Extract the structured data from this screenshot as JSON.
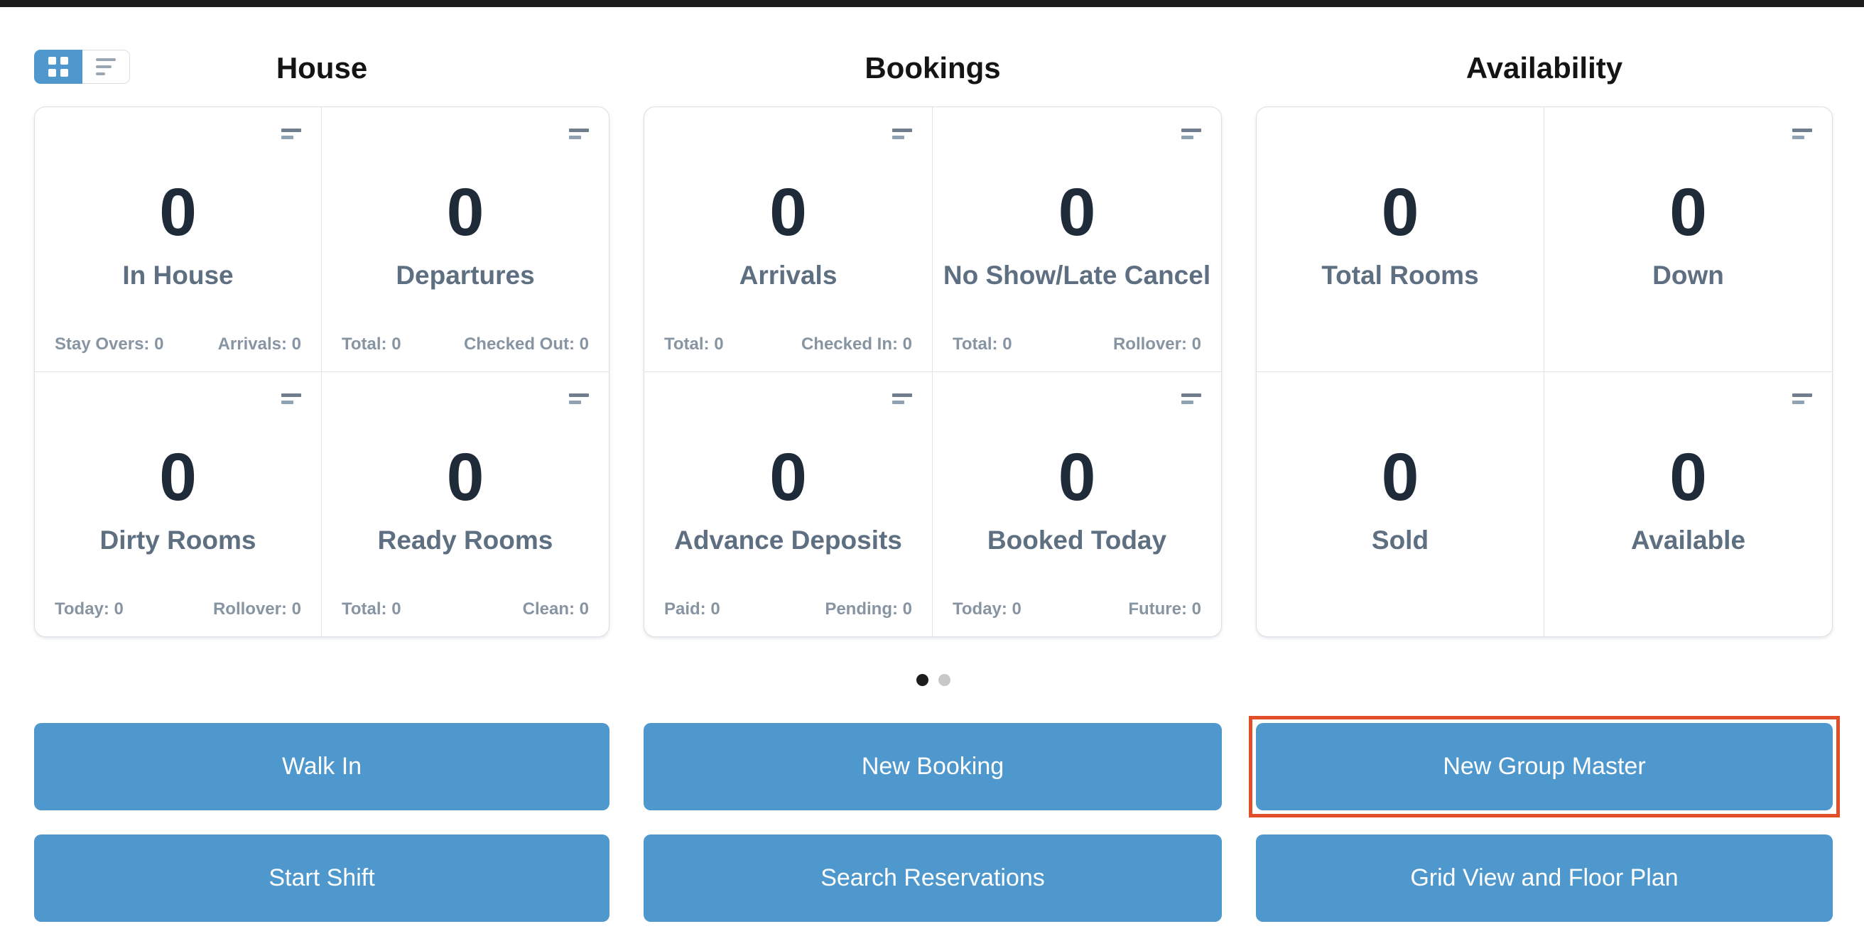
{
  "app": {
    "accent_blue": "#4e98ce",
    "highlight_red": "#e04e2a",
    "topbar_color": "#1c1c1c"
  },
  "view_toggle": {
    "active": "grid",
    "grid_icon": "grid-2x2-icon",
    "list_icon": "list-lines-icon"
  },
  "sections": [
    {
      "title": "House",
      "cards": [
        {
          "value": "0",
          "label": "In House",
          "footer_left": "Stay Overs: 0",
          "footer_right": "Arrivals: 0",
          "menu_icon": true
        },
        {
          "value": "0",
          "label": "Departures",
          "footer_left": "Total: 0",
          "footer_right": "Checked Out: 0",
          "menu_icon": true
        },
        {
          "value": "0",
          "label": "Dirty Rooms",
          "footer_left": "Today: 0",
          "footer_right": "Rollover: 0",
          "menu_icon": true
        },
        {
          "value": "0",
          "label": "Ready Rooms",
          "footer_left": "Total: 0",
          "footer_right": "Clean: 0",
          "menu_icon": true
        }
      ]
    },
    {
      "title": "Bookings",
      "cards": [
        {
          "value": "0",
          "label": "Arrivals",
          "footer_left": "Total: 0",
          "footer_right": "Checked In: 0",
          "menu_icon": true
        },
        {
          "value": "0",
          "label": "No Show/Late Cancel",
          "footer_left": "Total: 0",
          "footer_right": "Rollover: 0",
          "menu_icon": true
        },
        {
          "value": "0",
          "label": "Advance Deposits",
          "footer_left": "Paid: 0",
          "footer_right": "Pending: 0",
          "menu_icon": true
        },
        {
          "value": "0",
          "label": "Booked Today",
          "footer_left": "Today: 0",
          "footer_right": "Future: 0",
          "menu_icon": true
        }
      ]
    },
    {
      "title": "Availability",
      "cards": [
        {
          "value": "0",
          "label": "Total Rooms",
          "footer_left": "",
          "footer_right": "",
          "menu_icon": false
        },
        {
          "value": "0",
          "label": "Down",
          "footer_left": "",
          "footer_right": "",
          "menu_icon": true
        },
        {
          "value": "0",
          "label": "Sold",
          "footer_left": "",
          "footer_right": "",
          "menu_icon": false
        },
        {
          "value": "0",
          "label": "Available",
          "footer_left": "",
          "footer_right": "",
          "menu_icon": true
        }
      ]
    }
  ],
  "carousel": {
    "dot_count": 2,
    "active_index": 0
  },
  "actions": {
    "row1": [
      "Walk In",
      "New Booking",
      "New Group Master"
    ],
    "row2": [
      "Start Shift",
      "Search Reservations",
      "Grid View and Floor Plan"
    ],
    "highlighted": "New Group Master"
  }
}
